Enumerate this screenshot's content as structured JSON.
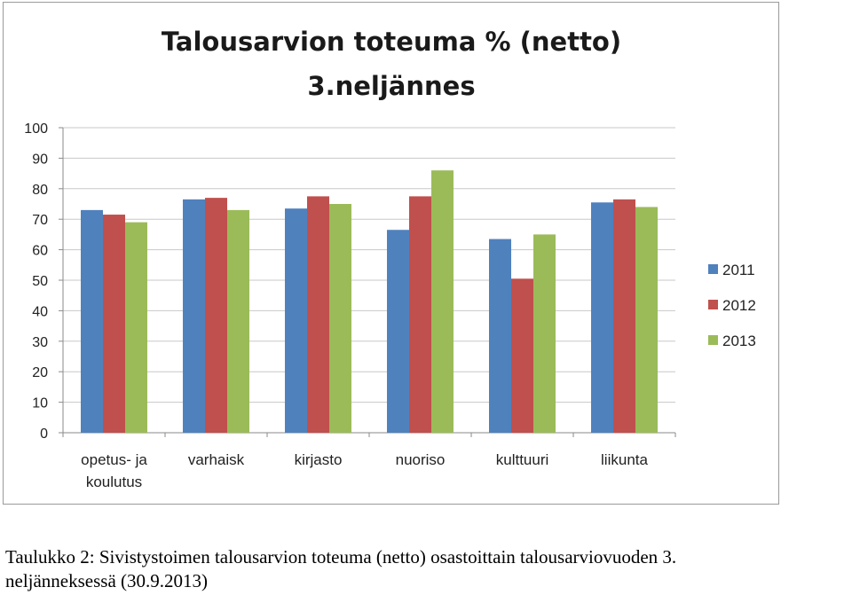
{
  "chart_data": {
    "type": "bar",
    "title_lines": [
      "Talousarvion toteuma % (netto)",
      "3.neljännes"
    ],
    "category_labels": [
      [
        "opetus- ja",
        "koulutus"
      ],
      [
        "varhaisk"
      ],
      [
        "kirjasto"
      ],
      [
        "nuoriso"
      ],
      [
        "kulttuuri"
      ],
      [
        "liikunta"
      ]
    ],
    "categories": [
      "opetus- ja koulutus",
      "varhaisk",
      "kirjasto",
      "nuoriso",
      "kulttuuri",
      "liikunta"
    ],
    "series": [
      {
        "name": "2011",
        "color": "#4f81bd",
        "values": [
          73,
          76.5,
          73.5,
          66.5,
          63.5,
          75.5
        ]
      },
      {
        "name": "2012",
        "color": "#c0504d",
        "values": [
          71.5,
          77,
          77.5,
          77.5,
          50.5,
          76.5
        ]
      },
      {
        "name": "2013",
        "color": "#9bbb59",
        "values": [
          69,
          73,
          75,
          86,
          65,
          74
        ]
      }
    ],
    "ylim": [
      0,
      100
    ],
    "yticks": [
      0,
      10,
      20,
      30,
      40,
      50,
      60,
      70,
      80,
      90,
      100
    ],
    "grid": true,
    "legend": "right"
  },
  "caption": {
    "line1": "Taulukko 2: Sivistystoimen talousarvion toteuma (netto) osastoittain talousarviovuoden 3.",
    "line2": "neljänneksessä (30.9.2013)"
  }
}
